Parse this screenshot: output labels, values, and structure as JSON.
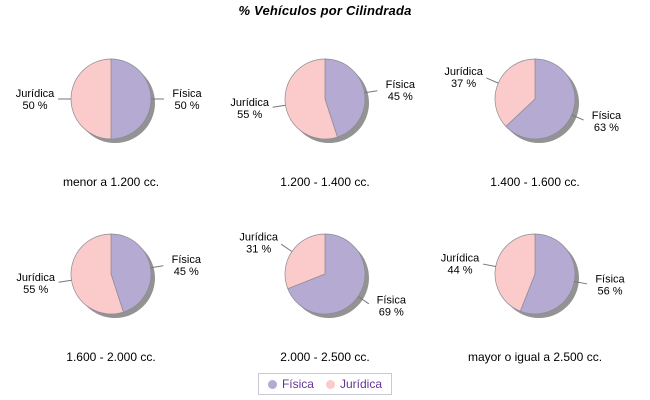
{
  "title": "% Vehículos por Cilindrada",
  "colors": {
    "fisica": "#B4AAD2",
    "juridica": "#FBCACA",
    "shadow": "#939393",
    "outline": "#8A8A94",
    "leader_line": "#777777",
    "legend_text": "#663399"
  },
  "legend": {
    "items": [
      {
        "name": "Física",
        "color": "#B4AAD2"
      },
      {
        "name": "Jurídica",
        "color": "#FBCACA"
      }
    ]
  },
  "chart_data": {
    "type": "pie",
    "title": "% Vehículos por Cilindrada",
    "series_names": [
      "Física",
      "Jurídica"
    ],
    "legend_position": "bottom",
    "pct_suffix": " %",
    "charts": [
      {
        "category": "menor a 1.200 cc.",
        "fisica": 50,
        "juridica": 50
      },
      {
        "category": "1.200 - 1.400 cc.",
        "fisica": 45,
        "juridica": 55
      },
      {
        "category": "1.400 - 1.600 cc.",
        "fisica": 63,
        "juridica": 37
      },
      {
        "category": "1.600 - 2.000 cc.",
        "fisica": 45,
        "juridica": 55
      },
      {
        "category": "2.000 - 2.500 cc.",
        "fisica": 69,
        "juridica": 31
      },
      {
        "category": "mayor o igual a 2.500 cc.",
        "fisica": 56,
        "juridica": 44
      }
    ]
  }
}
